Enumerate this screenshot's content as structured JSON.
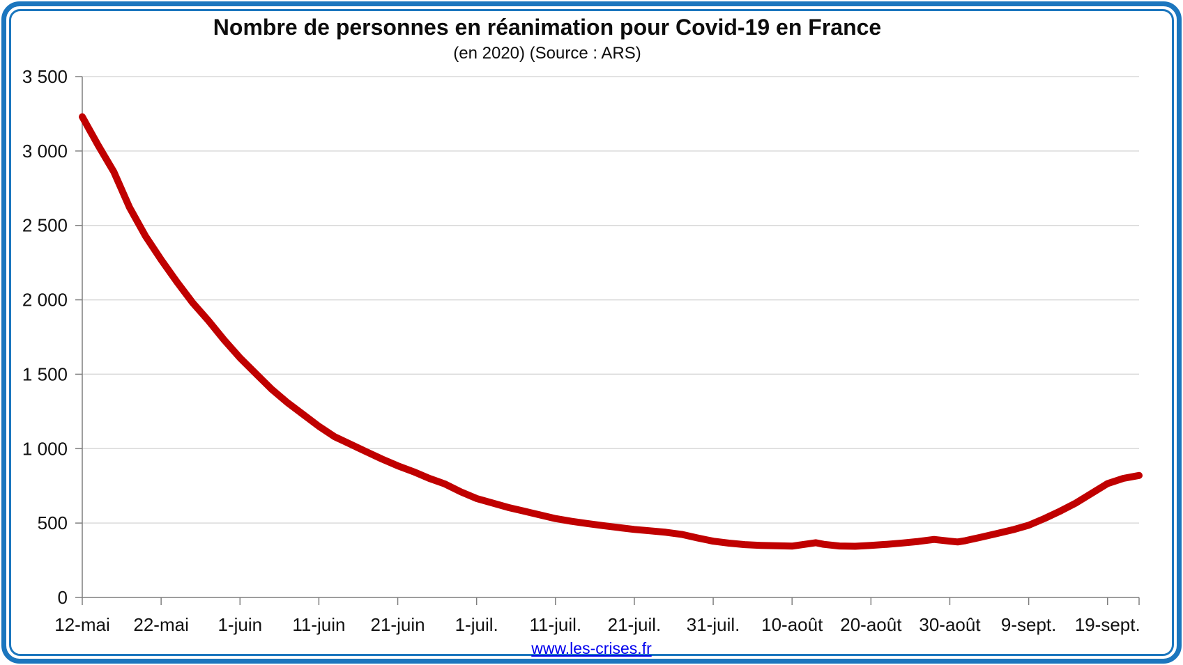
{
  "page": {
    "frame_color": "#1b76be",
    "background": "#ffffff"
  },
  "header": {
    "title": "Nombre de personnes en réanimation pour Covid-19 en France",
    "subtitle": "(en 2020) (Source : ARS)"
  },
  "footer": {
    "link_text": "www.les-crises.fr",
    "link_color": "#0000ee"
  },
  "chart_data": {
    "type": "line",
    "title": "Nombre de personnes en réanimation pour Covid-19 en France",
    "subtitle": "(en 2020) (Source : ARS)",
    "legend": "none",
    "grid": "horizontal",
    "grid_color": "#d9d9d9",
    "axis_color": "#7f7f7f",
    "label_color": "#111111",
    "ylim": [
      0,
      3500
    ],
    "x_range": [
      0,
      134
    ],
    "y_ticks": [
      {
        "value": 0,
        "label": "0"
      },
      {
        "value": 500,
        "label": "500"
      },
      {
        "value": 1000,
        "label": "1 000"
      },
      {
        "value": 1500,
        "label": "1 500"
      },
      {
        "value": 2000,
        "label": "2 000"
      },
      {
        "value": 2500,
        "label": "2 500"
      },
      {
        "value": 3000,
        "label": "3 000"
      },
      {
        "value": 3500,
        "label": "3 500"
      }
    ],
    "x_ticks": [
      {
        "day": 0,
        "label": "12-mai"
      },
      {
        "day": 10,
        "label": "22-mai"
      },
      {
        "day": 20,
        "label": "1-juin"
      },
      {
        "day": 30,
        "label": "11-juin"
      },
      {
        "day": 40,
        "label": "21-juin"
      },
      {
        "day": 50,
        "label": "1-juil."
      },
      {
        "day": 60,
        "label": "11-juil."
      },
      {
        "day": 70,
        "label": "21-juil."
      },
      {
        "day": 80,
        "label": "31-juil."
      },
      {
        "day": 90,
        "label": "10-août"
      },
      {
        "day": 100,
        "label": "20-août"
      },
      {
        "day": 110,
        "label": "30-août"
      },
      {
        "day": 120,
        "label": "9-sept."
      },
      {
        "day": 130,
        "label": "19-sept."
      }
    ],
    "series": [
      {
        "name": "Personnes en réanimation",
        "color": "#c00000",
        "points": [
          {
            "x": 0,
            "date": "12-mai",
            "y": 3230
          },
          {
            "x": 2,
            "date": "14-mai",
            "y": 3040
          },
          {
            "x": 4,
            "date": "16-mai",
            "y": 2860
          },
          {
            "x": 6,
            "date": "18-mai",
            "y": 2620
          },
          {
            "x": 8,
            "date": "20-mai",
            "y": 2430
          },
          {
            "x": 10,
            "date": "22-mai",
            "y": 2270
          },
          {
            "x": 12,
            "date": "24-mai",
            "y": 2120
          },
          {
            "x": 14,
            "date": "26-mai",
            "y": 1980
          },
          {
            "x": 16,
            "date": "28-mai",
            "y": 1860
          },
          {
            "x": 18,
            "date": "30-mai",
            "y": 1730
          },
          {
            "x": 20,
            "date": "1-juin",
            "y": 1610
          },
          {
            "x": 22,
            "date": "3-juin",
            "y": 1505
          },
          {
            "x": 24,
            "date": "5-juin",
            "y": 1400
          },
          {
            "x": 26,
            "date": "7-juin",
            "y": 1310
          },
          {
            "x": 28,
            "date": "9-juin",
            "y": 1230
          },
          {
            "x": 30,
            "date": "11-juin",
            "y": 1150
          },
          {
            "x": 32,
            "date": "13-juin",
            "y": 1080
          },
          {
            "x": 34,
            "date": "15-juin",
            "y": 1030
          },
          {
            "x": 36,
            "date": "17-juin",
            "y": 980
          },
          {
            "x": 38,
            "date": "19-juin",
            "y": 930
          },
          {
            "x": 40,
            "date": "21-juin",
            "y": 885
          },
          {
            "x": 42,
            "date": "23-juin",
            "y": 845
          },
          {
            "x": 44,
            "date": "25-juin",
            "y": 800
          },
          {
            "x": 46,
            "date": "27-juin",
            "y": 762
          },
          {
            "x": 48,
            "date": "29-juin",
            "y": 710
          },
          {
            "x": 50,
            "date": "1-juil.",
            "y": 665
          },
          {
            "x": 52,
            "date": "3-juil.",
            "y": 635
          },
          {
            "x": 54,
            "date": "5-juil.",
            "y": 605
          },
          {
            "x": 56,
            "date": "7-juil.",
            "y": 580
          },
          {
            "x": 58,
            "date": "9-juil.",
            "y": 555
          },
          {
            "x": 60,
            "date": "11-juil.",
            "y": 530
          },
          {
            "x": 62,
            "date": "13-juil.",
            "y": 512
          },
          {
            "x": 64,
            "date": "15-juil.",
            "y": 497
          },
          {
            "x": 66,
            "date": "17-juil.",
            "y": 483
          },
          {
            "x": 68,
            "date": "19-juil.",
            "y": 470
          },
          {
            "x": 70,
            "date": "21-juil.",
            "y": 457
          },
          {
            "x": 72,
            "date": "23-juil.",
            "y": 448
          },
          {
            "x": 74,
            "date": "25-juil.",
            "y": 438
          },
          {
            "x": 76,
            "date": "27-juil.",
            "y": 424
          },
          {
            "x": 78,
            "date": "29-juil.",
            "y": 400
          },
          {
            "x": 80,
            "date": "31-juil.",
            "y": 378
          },
          {
            "x": 82,
            "date": "2-août",
            "y": 365
          },
          {
            "x": 84,
            "date": "4-août",
            "y": 355
          },
          {
            "x": 86,
            "date": "6-août",
            "y": 350
          },
          {
            "x": 88,
            "date": "8-août",
            "y": 347
          },
          {
            "x": 90,
            "date": "10-août",
            "y": 345
          },
          {
            "x": 92,
            "date": "12-août",
            "y": 360
          },
          {
            "x": 93,
            "date": "13-août",
            "y": 368
          },
          {
            "x": 94,
            "date": "14-août",
            "y": 357
          },
          {
            "x": 96,
            "date": "16-août",
            "y": 346
          },
          {
            "x": 98,
            "date": "18-août",
            "y": 344
          },
          {
            "x": 100,
            "date": "20-août",
            "y": 350
          },
          {
            "x": 102,
            "date": "22-août",
            "y": 357
          },
          {
            "x": 104,
            "date": "24-août",
            "y": 366
          },
          {
            "x": 106,
            "date": "26-août",
            "y": 376
          },
          {
            "x": 108,
            "date": "28-août",
            "y": 390
          },
          {
            "x": 110,
            "date": "30-août",
            "y": 378
          },
          {
            "x": 111,
            "date": "31-août",
            "y": 373
          },
          {
            "x": 112,
            "date": "1-sept.",
            "y": 382
          },
          {
            "x": 114,
            "date": "3-sept.",
            "y": 405
          },
          {
            "x": 116,
            "date": "5-sept.",
            "y": 430
          },
          {
            "x": 118,
            "date": "7-sept.",
            "y": 455
          },
          {
            "x": 120,
            "date": "9-sept.",
            "y": 485
          },
          {
            "x": 122,
            "date": "11-sept.",
            "y": 530
          },
          {
            "x": 124,
            "date": "13-sept.",
            "y": 580
          },
          {
            "x": 126,
            "date": "15-sept.",
            "y": 635
          },
          {
            "x": 128,
            "date": "17-sept.",
            "y": 700
          },
          {
            "x": 130,
            "date": "19-sept.",
            "y": 765
          },
          {
            "x": 132,
            "date": "21-sept.",
            "y": 800
          },
          {
            "x": 134,
            "date": "23-sept.",
            "y": 820
          }
        ]
      }
    ]
  }
}
